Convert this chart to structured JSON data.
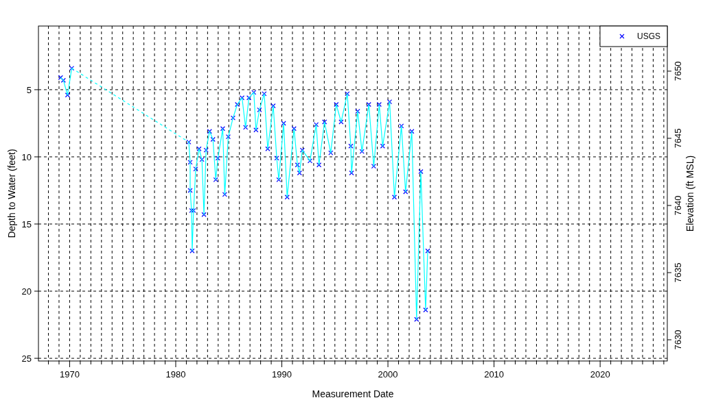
{
  "chart_data": {
    "type": "line",
    "xlabel": "Measurement Date",
    "ylabel": "Depth to Water (feet)",
    "y2label": "Elevation (ft MSL)",
    "xlim": [
      1967.06,
      2026.33
    ],
    "ylim": [
      25.2,
      0.26
    ],
    "y2lim": [
      7628.42,
      7653.36
    ],
    "xticks": [
      {
        "value": 1968,
        "label": null
      },
      {
        "value": 1969,
        "label": null
      },
      1970,
      {
        "value": 1971,
        "label": null
      },
      {
        "value": 1972,
        "label": null
      },
      {
        "value": 1973,
        "label": null
      },
      {
        "value": 1974,
        "label": null
      },
      {
        "value": 1975,
        "label": null
      },
      {
        "value": 1976,
        "label": null
      },
      {
        "value": 1977,
        "label": null
      },
      {
        "value": 1978,
        "label": null
      },
      {
        "value": 1979,
        "label": null
      },
      1980,
      {
        "value": 1981,
        "label": null
      },
      {
        "value": 1982,
        "label": null
      },
      {
        "value": 1983,
        "label": null
      },
      {
        "value": 1984,
        "label": null
      },
      {
        "value": 1985,
        "label": null
      },
      {
        "value": 1986,
        "label": null
      },
      {
        "value": 1987,
        "label": null
      },
      {
        "value": 1988,
        "label": null
      },
      {
        "value": 1989,
        "label": null
      },
      1990,
      {
        "value": 1991,
        "label": null
      },
      {
        "value": 1992,
        "label": null
      },
      {
        "value": 1993,
        "label": null
      },
      {
        "value": 1994,
        "label": null
      },
      {
        "value": 1995,
        "label": null
      },
      {
        "value": 1996,
        "label": null
      },
      {
        "value": 1997,
        "label": null
      },
      {
        "value": 1998,
        "label": null
      },
      {
        "value": 1999,
        "label": null
      },
      2000,
      {
        "value": 2001,
        "label": null
      },
      {
        "value": 2002,
        "label": null
      },
      {
        "value": 2003,
        "label": null
      },
      {
        "value": 2004,
        "label": null
      },
      {
        "value": 2005,
        "label": null
      },
      {
        "value": 2006,
        "label": null
      },
      {
        "value": 2007,
        "label": null
      },
      {
        "value": 2008,
        "label": null
      },
      {
        "value": 2009,
        "label": null
      },
      2010,
      {
        "value": 2011,
        "label": null
      },
      {
        "value": 2012,
        "label": null
      },
      {
        "value": 2013,
        "label": null
      },
      {
        "value": 2014,
        "label": null
      },
      {
        "value": 2015,
        "label": null
      },
      {
        "value": 2016,
        "label": null
      },
      {
        "value": 2017,
        "label": null
      },
      {
        "value": 2018,
        "label": null
      },
      {
        "value": 2019,
        "label": null
      },
      2020,
      {
        "value": 2021,
        "label": null
      },
      {
        "value": 2022,
        "label": null
      },
      {
        "value": 2023,
        "label": null
      },
      {
        "value": 2024,
        "label": null
      },
      {
        "value": 2025,
        "label": null
      },
      {
        "value": 2026,
        "label": null
      }
    ],
    "yticks": [
      5,
      10,
      15,
      20,
      25
    ],
    "y2ticks": [
      7630,
      7635,
      7640,
      7645,
      7650
    ],
    "grid": true,
    "legend": "top right",
    "series": [
      {
        "color": "#00ffff",
        "marker": "none",
        "line_style": "solid",
        "x": [
          1969.15,
          1969.41,
          1969.8,
          1970.2
        ],
        "values": [
          4.1,
          4.3,
          5.4,
          3.4
        ]
      },
      {
        "color": "#00ffff",
        "marker": "none",
        "line_style": "dashed",
        "x": [
          1970.2,
          1981.23
        ],
        "values": [
          3.4,
          8.9
        ]
      },
      {
        "color": "#00ffff",
        "marker": "none",
        "line_style": "solid",
        "x": [
          1981.23,
          1981.36,
          1981.36,
          1981.49,
          1981.55,
          1981.68,
          1981.88,
          1982.2,
          1982.47,
          1982.66,
          1982.86,
          1983.19,
          1983.51,
          1983.77,
          1983.97,
          1984.43,
          1984.62,
          1984.95,
          1985.4,
          1985.8,
          1986.25,
          1986.58,
          1986.9,
          1987.36,
          1987.56,
          1987.89,
          1988.34,
          1988.67,
          1989.19,
          1989.52,
          1989.71,
          1990.17,
          1990.5,
          1991.15,
          1991.47,
          1991.67,
          1991.93,
          1992.65,
          1993.24,
          1993.5,
          1994.02,
          1994.61,
          1995.13,
          1995.59,
          1996.17,
          1996.5,
          1996.57,
          1997.15,
          1997.55,
          1998.2,
          1998.66,
          1999.18,
          1999.5,
          2000.16,
          2000.61,
          2001.27,
          2001.66,
          2002.25,
          2002.7,
          2003.1,
          2003.55,
          2003.75
        ],
        "values": [
          8.9,
          10.4,
          12.5,
          14.0,
          17.0,
          14.0,
          10.9,
          9.4,
          10.2,
          14.3,
          9.5,
          8.1,
          8.7,
          11.7,
          10.1,
          7.9,
          12.8,
          8.5,
          7.1,
          6.1,
          5.6,
          7.8,
          5.6,
          5.2,
          8.0,
          6.5,
          5.3,
          9.4,
          6.2,
          10.1,
          11.7,
          7.5,
          13.0,
          7.9,
          10.6,
          11.2,
          9.5,
          10.3,
          7.6,
          10.6,
          7.4,
          9.7,
          6.1,
          7.4,
          5.3,
          9.2,
          11.2,
          6.6,
          9.6,
          6.1,
          10.7,
          6.1,
          9.2,
          5.9,
          13.0,
          7.7,
          12.6,
          8.1,
          22.1,
          11.1,
          21.4,
          17.0
        ]
      },
      {
        "type": "scatter",
        "name": "USGS",
        "color": "#0000ff",
        "marker": "cross",
        "x": [
          1969.15,
          1969.41,
          1969.8,
          1970.2,
          1981.23,
          1981.36,
          1981.36,
          1981.49,
          1981.55,
          1981.68,
          1981.88,
          1982.2,
          1982.47,
          1982.66,
          1982.86,
          1983.19,
          1983.51,
          1983.77,
          1983.97,
          1984.43,
          1984.62,
          1984.95,
          1985.4,
          1985.8,
          1986.25,
          1986.58,
          1986.9,
          1987.36,
          1987.56,
          1987.89,
          1988.34,
          1988.67,
          1989.19,
          1989.52,
          1989.71,
          1990.17,
          1990.5,
          1991.15,
          1991.47,
          1991.67,
          1991.93,
          1992.65,
          1993.24,
          1993.5,
          1994.02,
          1994.61,
          1995.13,
          1995.59,
          1996.17,
          1996.5,
          1996.57,
          1997.15,
          1997.55,
          1998.2,
          1998.66,
          1999.18,
          1999.5,
          2000.16,
          2000.61,
          2001.27,
          2001.66,
          2002.25,
          2002.7,
          2003.1,
          2003.55,
          2003.75
        ],
        "values": [
          4.1,
          4.3,
          5.4,
          3.4,
          8.9,
          10.4,
          12.5,
          14.0,
          17.0,
          14.0,
          10.9,
          9.4,
          10.2,
          14.3,
          9.5,
          8.1,
          8.7,
          11.7,
          10.1,
          7.9,
          12.8,
          8.5,
          7.1,
          6.1,
          5.6,
          7.8,
          5.6,
          5.2,
          8.0,
          6.5,
          5.3,
          9.4,
          6.2,
          10.1,
          11.7,
          7.5,
          13.0,
          7.9,
          10.6,
          11.2,
          9.5,
          10.3,
          7.6,
          10.6,
          7.4,
          9.7,
          6.1,
          7.4,
          5.3,
          9.2,
          11.2,
          6.6,
          9.6,
          6.1,
          10.7,
          6.1,
          9.2,
          5.9,
          13.0,
          7.7,
          12.6,
          8.1,
          22.1,
          11.1,
          21.4,
          17.0
        ]
      }
    ]
  }
}
